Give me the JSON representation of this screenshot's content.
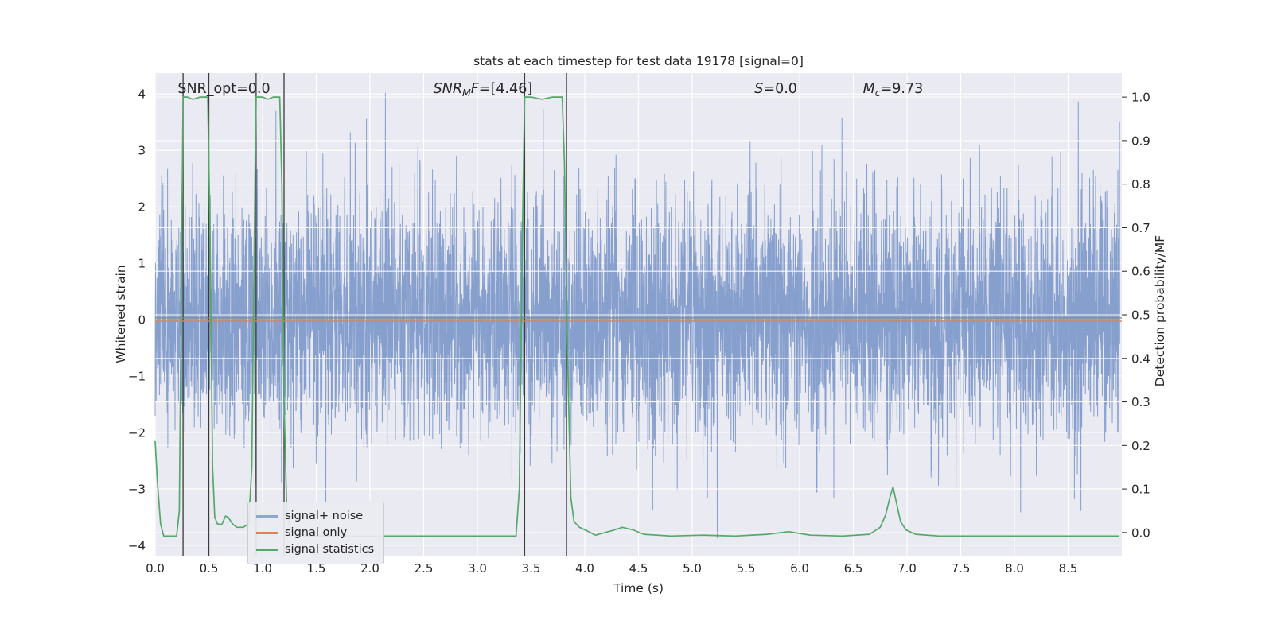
{
  "title": "stats at each timestep for test data 19178 [signal=0]",
  "legend": {
    "items": [
      {
        "label": "signal+ noise",
        "color": "#8ea6d4"
      },
      {
        "label": "signal only",
        "color": "#dd8452"
      },
      {
        "label": "signal statistics",
        "color": "#55a868"
      }
    ]
  },
  "chart_data": {
    "type": "line",
    "title": "stats at each timestep for test data 19178 [signal=0]",
    "xlabel": "Time (s)",
    "ylabel_left": "Whitened strain",
    "ylabel_right": "Detection probability/MF",
    "background": "#eaeaf2",
    "grid": true,
    "grid_color": "#ffffff",
    "x_range": [
      0.0,
      9.0
    ],
    "x_ticks": [
      0.0,
      0.5,
      1.0,
      1.5,
      2.0,
      2.5,
      3.0,
      3.5,
      4.0,
      4.5,
      5.0,
      5.5,
      6.0,
      6.5,
      7.0,
      7.5,
      8.0,
      8.5
    ],
    "y_left_ticks": [
      -4,
      -3,
      -2,
      -1,
      0,
      1,
      2,
      3,
      4
    ],
    "y_left_view": [
      -4.2,
      4.37
    ],
    "y_right_ticks": [
      0.0,
      0.1,
      0.2,
      0.3,
      0.4,
      0.5,
      0.6,
      0.7,
      0.8,
      0.9,
      1.0
    ],
    "y_right_view": [
      -0.055,
      1.055
    ],
    "zero_line_color": "#8c8c8c",
    "annotations": [
      {
        "id": "snr-opt",
        "x": 0.21,
        "y": 4.0,
        "parts": [
          {
            "t": "SNR_opt=0.0",
            "style": "plain"
          }
        ]
      },
      {
        "id": "snr-mf",
        "x": 2.59,
        "y": 4.0,
        "parts": [
          {
            "t": "SNR",
            "style": "italic"
          },
          {
            "t": "M",
            "style": "sub"
          },
          {
            "t": "F",
            "style": "italic"
          },
          {
            "t": "=[4.46]",
            "style": "plain"
          }
        ]
      },
      {
        "id": "s",
        "x": 5.58,
        "y": 4.0,
        "parts": [
          {
            "t": "S",
            "style": "italic"
          },
          {
            "t": "=0.0",
            "style": "plain"
          }
        ]
      },
      {
        "id": "mc",
        "x": 6.59,
        "y": 4.0,
        "parts": [
          {
            "t": "M",
            "style": "italic"
          },
          {
            "t": "c",
            "style": "sub"
          },
          {
            "t": "=9.73",
            "style": "plain"
          }
        ]
      }
    ],
    "vlines": {
      "x": [
        0.26,
        0.5,
        0.94,
        1.2,
        3.44,
        3.83
      ],
      "color": "#3a3a3a"
    },
    "series": [
      {
        "name": "signal+ noise",
        "kind": "gaussian-noise",
        "axis": "left",
        "color": "#5b7fbd",
        "alpha": 0.7,
        "seed": 19178,
        "n": 5200,
        "std": 1.08,
        "clip": 4.02
      },
      {
        "name": "signal only",
        "kind": "constant",
        "axis": "left",
        "color": "#dd8452",
        "value": 0.0
      },
      {
        "name": "signal statistics",
        "kind": "points",
        "axis": "right",
        "color": "#55a868",
        "points": [
          [
            0.0,
            0.21
          ],
          [
            0.02,
            0.12
          ],
          [
            0.05,
            0.02
          ],
          [
            0.08,
            -0.008
          ],
          [
            0.2,
            -0.008
          ],
          [
            0.225,
            0.05
          ],
          [
            0.245,
            0.6
          ],
          [
            0.26,
            1.0
          ],
          [
            0.3,
            1.0
          ],
          [
            0.35,
            0.995
          ],
          [
            0.42,
            1.0
          ],
          [
            0.49,
            1.0
          ],
          [
            0.51,
            0.7
          ],
          [
            0.535,
            0.15
          ],
          [
            0.555,
            0.035
          ],
          [
            0.58,
            0.02
          ],
          [
            0.62,
            0.018
          ],
          [
            0.655,
            0.038
          ],
          [
            0.68,
            0.035
          ],
          [
            0.72,
            0.02
          ],
          [
            0.76,
            0.012
          ],
          [
            0.82,
            0.012
          ],
          [
            0.87,
            0.02
          ],
          [
            0.9,
            0.15
          ],
          [
            0.92,
            0.6
          ],
          [
            0.94,
            1.0
          ],
          [
            1.0,
            1.0
          ],
          [
            1.05,
            0.995
          ],
          [
            1.1,
            1.0
          ],
          [
            1.16,
            1.0
          ],
          [
            1.18,
            0.8
          ],
          [
            1.2,
            0.3
          ],
          [
            1.225,
            0.05
          ],
          [
            1.26,
            0.005
          ],
          [
            1.32,
            -0.008
          ],
          [
            3.36,
            -0.008
          ],
          [
            3.39,
            0.1
          ],
          [
            3.42,
            0.7
          ],
          [
            3.44,
            1.0
          ],
          [
            3.5,
            1.0
          ],
          [
            3.6,
            0.995
          ],
          [
            3.7,
            1.0
          ],
          [
            3.79,
            1.0
          ],
          [
            3.81,
            0.85
          ],
          [
            3.84,
            0.4
          ],
          [
            3.87,
            0.08
          ],
          [
            3.9,
            0.025
          ],
          [
            3.95,
            0.012
          ],
          [
            4.02,
            0.004
          ],
          [
            4.1,
            -0.006
          ],
          [
            4.25,
            0.004
          ],
          [
            4.35,
            0.012
          ],
          [
            4.45,
            0.006
          ],
          [
            4.55,
            -0.004
          ],
          [
            4.8,
            -0.008
          ],
          [
            5.1,
            -0.006
          ],
          [
            5.4,
            -0.008
          ],
          [
            5.7,
            -0.004
          ],
          [
            5.9,
            0.002
          ],
          [
            6.1,
            -0.006
          ],
          [
            6.4,
            -0.008
          ],
          [
            6.65,
            -0.004
          ],
          [
            6.75,
            0.012
          ],
          [
            6.8,
            0.04
          ],
          [
            6.84,
            0.08
          ],
          [
            6.87,
            0.105
          ],
          [
            6.9,
            0.07
          ],
          [
            6.94,
            0.025
          ],
          [
            6.99,
            0.006
          ],
          [
            7.08,
            -0.004
          ],
          [
            7.3,
            -0.008
          ],
          [
            7.8,
            -0.008
          ],
          [
            8.3,
            -0.008
          ],
          [
            8.7,
            -0.008
          ],
          [
            8.97,
            -0.008
          ]
        ]
      }
    ]
  }
}
